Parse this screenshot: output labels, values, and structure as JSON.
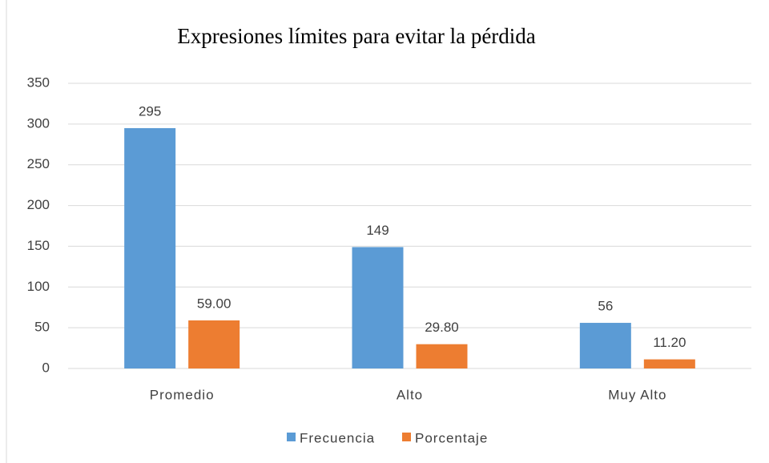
{
  "chart_data": {
    "type": "bar",
    "title": "Expresiones  límites  para evitar  la pérdida",
    "categories": [
      "Promedio",
      "Alto",
      "Muy Alto"
    ],
    "series": [
      {
        "name": "Frecuencia",
        "color": "#5b9bd5",
        "values": [
          295,
          149,
          56
        ]
      },
      {
        "name": "Porcentaje",
        "color": "#ed7d31",
        "values": [
          59.0,
          29.8,
          11.2
        ],
        "value_labels": [
          "59.00",
          "29.80",
          "11.20"
        ]
      }
    ],
    "ylim": [
      0,
      350
    ],
    "yticks": [
      0,
      50,
      100,
      150,
      200,
      250,
      300,
      350
    ],
    "grid": true,
    "legend": "bottom"
  }
}
